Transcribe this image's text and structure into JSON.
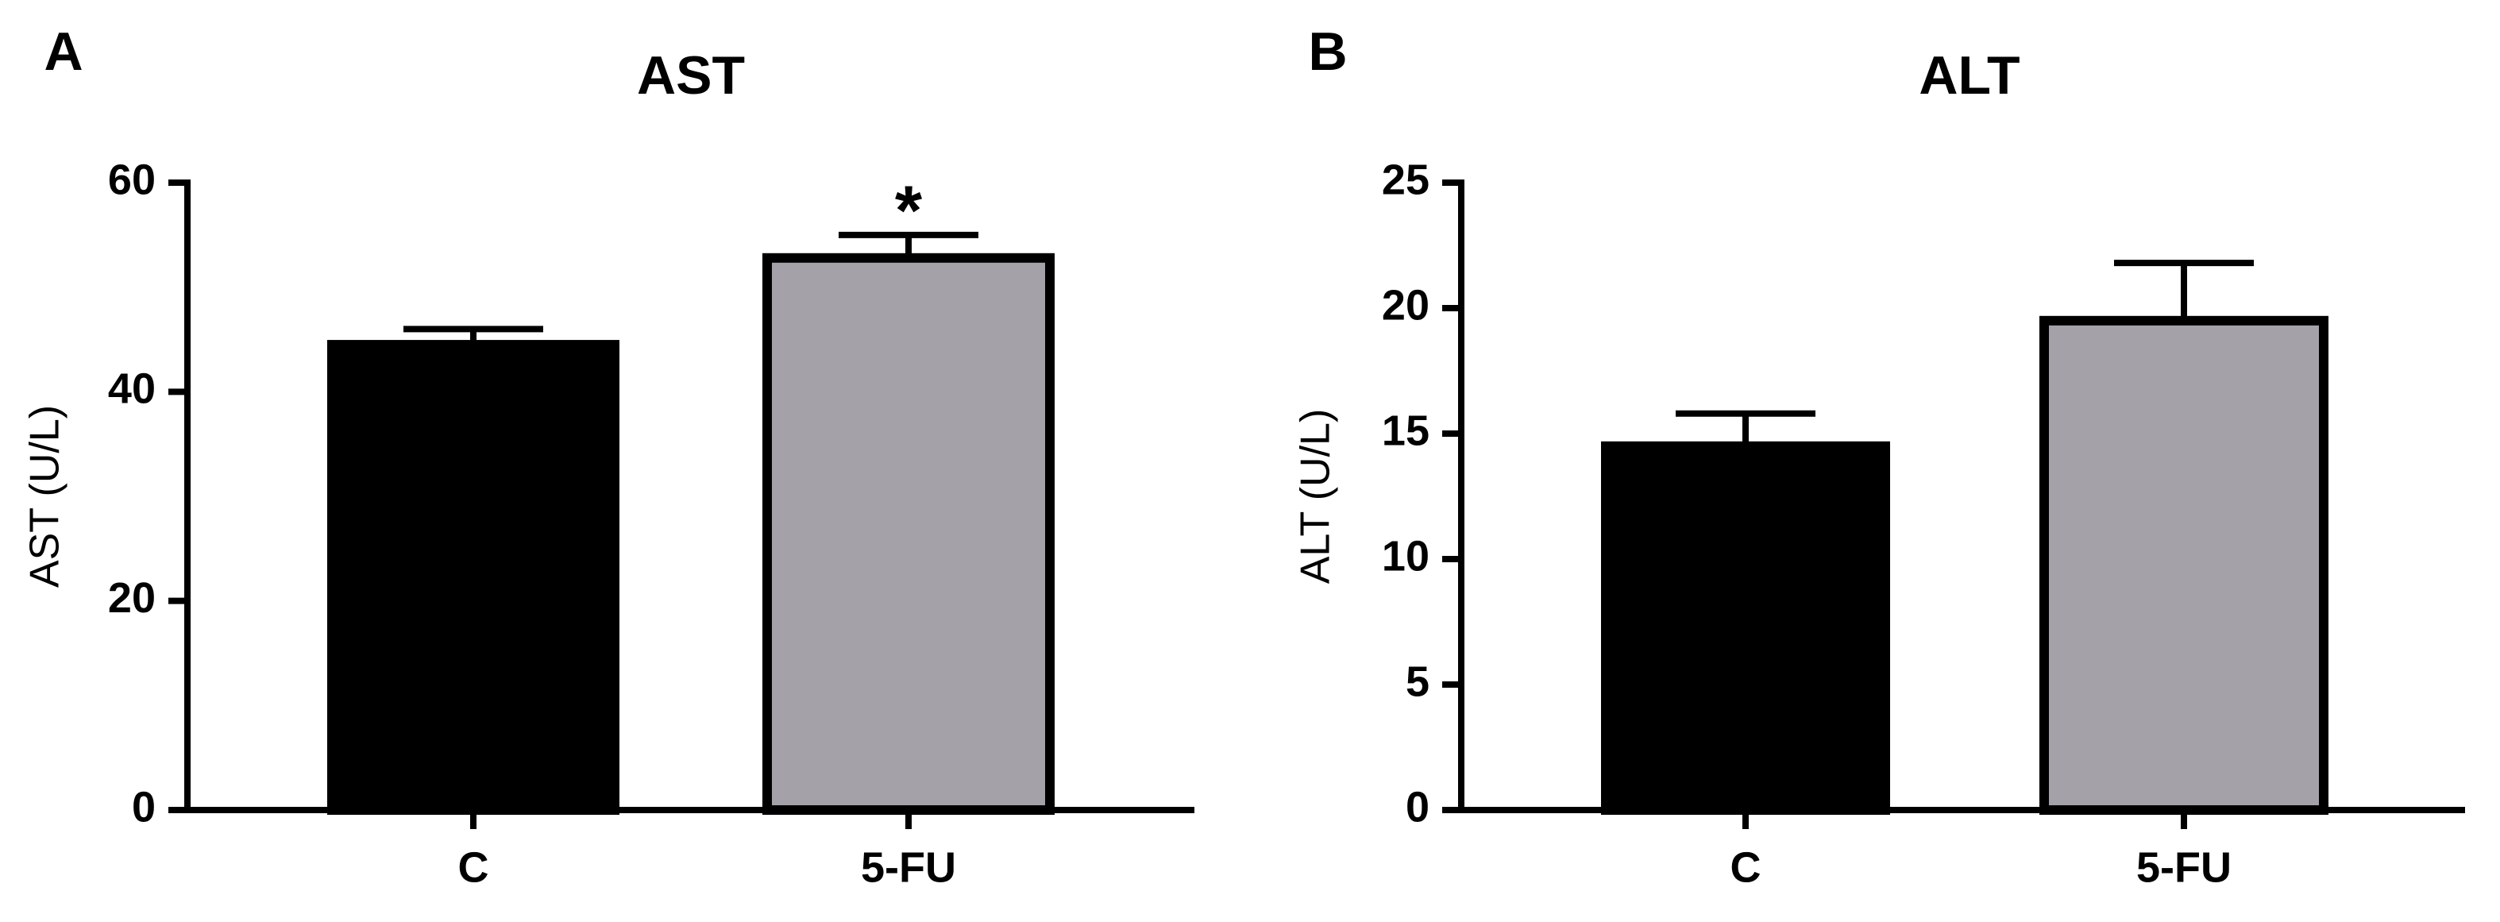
{
  "chart_data": [
    {
      "type": "bar",
      "panel_label": "A",
      "title": "AST",
      "y_label": "AST (U/L)",
      "categories": [
        "C",
        "5-FU"
      ],
      "values": [
        44.5,
        52.8
      ],
      "errors": [
        1.5,
        2.2
      ],
      "colors": [
        "#000000",
        "#a4a2a8"
      ],
      "annotations": [
        {
          "category": "5-FU",
          "text": "*"
        }
      ],
      "ylim": [
        0,
        60
      ],
      "yticks": [
        0,
        20,
        40,
        60
      ]
    },
    {
      "type": "bar",
      "panel_label": "B",
      "title": "ALT",
      "y_label": "ALT (U/L)",
      "categories": [
        "C",
        "5-FU"
      ],
      "values": [
        14.5,
        19.5
      ],
      "errors": [
        1.3,
        2.3
      ],
      "colors": [
        "#000000",
        "#a4a2a8"
      ],
      "ylim": [
        0,
        25
      ],
      "yticks": [
        0,
        5,
        10,
        15,
        20,
        25
      ]
    }
  ]
}
